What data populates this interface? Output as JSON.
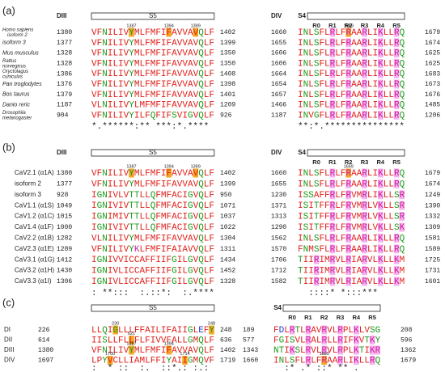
{
  "panels": [
    {
      "label": "(a)",
      "s5_domain": "DIII",
      "s5": "S5",
      "s4_domain": "DIV",
      "s4": "S4",
      "r_labels": [
        "R0",
        "R1",
        "R2",
        "R3",
        "R4",
        "R5"
      ],
      "rows": [
        {
          "name": [
            "Homo sapiens",
            "isoform 2"
          ],
          "s5_start": 1380,
          "s5_seq": "VFNILIVYMLFMFIFAVVAVQLF",
          "s5_end": 1402,
          "s5_marks": [
            1387,
            1394,
            1399
          ],
          "s4_start": 1660,
          "s4_seq": "INLSFLRLFRAARLIKLLRQ",
          "s4_end": 1679,
          "s4_marks": [
            1669
          ]
        },
        {
          "name": [
            "isoform 3"
          ],
          "s5_start": 1377,
          "s5_seq": "VFNILIVYMLFMFIFAVVAVQLF",
          "s5_end": 1399,
          "s5_marks": [],
          "s4_start": 1655,
          "s4_seq": "INLSFLRLFRAARLIKLLRQ",
          "s4_end": 1674,
          "s4_marks": []
        },
        {
          "name": [
            "Mus musculus"
          ],
          "s5_start": 1328,
          "s5_seq": "VFNILIVYMLFMFIFAVVAVQLF",
          "s5_end": 1350,
          "s5_marks": [],
          "s4_start": 1606,
          "s4_seq": "INLSFLRLFRAARLIKLLRQ",
          "s4_end": 1625,
          "s4_marks": []
        },
        {
          "name": [
            "Rattus",
            "norvegicus"
          ],
          "s5_start": 1328,
          "s5_seq": "VFNILIVYMLFMFIFAVVAVQLF",
          "s5_end": 1350,
          "s5_marks": [],
          "s4_start": 1606,
          "s4_seq": "INLSFLRLFRAARLIKLLRQ",
          "s4_end": 1625,
          "s4_marks": []
        },
        {
          "name": [
            "Oryctolagus",
            "cuniculus"
          ],
          "s5_start": 1386,
          "s5_seq": "VFNILIVYMLFMFIFAVVAVQLF",
          "s5_end": 1408,
          "s5_marks": [],
          "s4_start": 1664,
          "s4_seq": "INLSFLRLFRAARLIKLLRQ",
          "s4_end": 1683,
          "s4_marks": []
        },
        {
          "name": [
            "Pan troglodytes"
          ],
          "s5_start": 1376,
          "s5_seq": "VFNILIVYMLFMFIFAVVAVQLF",
          "s5_end": 1398,
          "s5_marks": [],
          "s4_start": 1654,
          "s4_seq": "INLSFLRLFRAARLIKLLRQ",
          "s4_end": 1673,
          "s4_marks": []
        },
        {
          "name": [
            "Bos taurus"
          ],
          "s5_start": 1379,
          "s5_seq": "VFNILIVYMLFMFIFAVVAVQLF",
          "s5_end": 1401,
          "s5_marks": [],
          "s4_start": 1657,
          "s4_seq": "INLSFLRLFRAARLIKLLRQ",
          "s4_end": 1676,
          "s4_marks": []
        },
        {
          "name": [
            "Danio reric"
          ],
          "s5_start": 1187,
          "s5_seq": "VLNILIVYLMFMFIFAVVAVQLF",
          "s5_end": 1209,
          "s5_marks": [],
          "s4_start": 1466,
          "s4_seq": "INLSFLRLFRAARLIKLLRQ",
          "s4_end": 1485,
          "s4_marks": []
        },
        {
          "name": [
            "Drosophila",
            "melanogaster"
          ],
          "s5_start": 904,
          "s5_seq": "VFNILIVYILFQFIFSVIGVQLF",
          "s5_end": 926,
          "s5_marks": [],
          "s4_start": 1187,
          "s4_seq": "INVGFLRLFRAARLIKLLRQ",
          "s4_end": 1206,
          "s4_marks": []
        }
      ],
      "s5_conservation": "*.******:** ***:*.****",
      "s4_conservation": "**:*.***************"
    },
    {
      "label": "(b)",
      "s5_domain": "DIII",
      "s5": "S5",
      "s4_domain": "DIV",
      "s4": "S4",
      "r_labels": [
        "R0",
        "R1",
        "R2",
        "R3",
        "R4",
        "R5"
      ],
      "rows": [
        {
          "name": [
            "CaV2.1 (α1A)"
          ],
          "s5_start": 1380,
          "s5_seq": "VFNILIVYMLFMFIFAVVAVQLF",
          "s5_end": 1402,
          "s5_marks": [
            1387,
            1394,
            1399
          ],
          "s4_start": 1660,
          "s4_seq": "INLSFLRLFRAARLIKLLRQ",
          "s4_end": 1679,
          "s4_marks": [
            1669
          ]
        },
        {
          "name": [
            "isoform 2"
          ],
          "s5_start": 1377,
          "s5_seq": "VFNILIVYMLFMFIFAVVAVQLF",
          "s5_end": 1399,
          "s5_marks": [],
          "s4_start": 1655,
          "s4_seq": "INLSFLRLFRAARLIKLLRQ",
          "s4_end": 1674,
          "s4_marks": []
        },
        {
          "name": [
            "isoform 3"
          ],
          "s5_start": 928,
          "s5_seq": "IGNIVLVTTLLQFMFACIGVQLF",
          "s5_end": 950,
          "s5_marks": [],
          "s4_start": 1230,
          "s4_seq": "ISSAFFRLFRVMRLIKLLSR",
          "s4_end": 1249,
          "s4_marks": []
        },
        {
          "name": [
            "CaV1.1 (α1S)"
          ],
          "s5_start": 1049,
          "s5_seq": "IGNIVIVTTLLQFMFACIGVQLF",
          "s5_end": 1071,
          "s5_marks": [],
          "s4_start": 1371,
          "s4_seq": "ISITFFRLFRVMRLVKLLSR",
          "s4_end": 1390,
          "s4_marks": []
        },
        {
          "name": [
            "CaV1.2 (α1C)"
          ],
          "s5_start": 1015,
          "s5_seq": "IGNIMIVTTLLQFMFACIGVQLF",
          "s5_end": 1037,
          "s5_marks": [],
          "s4_start": 1313,
          "s4_seq": "ISITFFRLFRVMRLVKLLSR",
          "s4_end": 1332,
          "s4_marks": []
        },
        {
          "name": [
            "CaV1.4 (α1F)"
          ],
          "s5_start": 1000,
          "s5_seq": "IGNIVIVTTLLQFMFACIGVQLF",
          "s5_end": 1022,
          "s5_marks": [],
          "s4_start": 1290,
          "s4_seq": "ISITFFRLFRVMRLVKLLSK",
          "s4_end": 1309,
          "s4_marks": []
        },
        {
          "name": [
            "CaV2.2 (α1B)"
          ],
          "s5_start": 1282,
          "s5_seq": "VLNILIVYMLFMFIFAVVAVQLF",
          "s5_end": 1304,
          "s5_marks": [],
          "s4_start": 1562,
          "s4_seq": "INLSFLRLFRAARLIKLLRQ",
          "s4_end": 1581,
          "s4_marks": []
        },
        {
          "name": [
            "CaV2.3 (α1E)"
          ],
          "s5_start": 1289,
          "s5_seq": "VFNILIVYKLFMFIFAIAVVQLF",
          "s5_end": 1311,
          "s5_marks": [],
          "s4_start": 1570,
          "s4_seq": "FNMSFLRLFRAARLIKLLRQ",
          "s4_end": 1589,
          "s4_marks": []
        },
        {
          "name": [
            "CaV3.1 (α1G)"
          ],
          "s5_start": 1412,
          "s5_seq": "IGNIVVICCAFFIIFGILGVQLF",
          "s5_end": 1434,
          "s5_marks": [],
          "s4_start": 1706,
          "s4_seq": "TIIRIMRVLRIARVLKLLKM",
          "s4_end": 1725,
          "s4_marks": []
        },
        {
          "name": [
            "CaV3.2 (α1H)"
          ],
          "s5_start": 1430,
          "s5_seq": "IGNIVLICCAFFIIFGILGVQLF",
          "s5_end": 1452,
          "s5_marks": [],
          "s4_start": 1712,
          "s4_seq": "TIIRIMRVLRIARVLKLLKM",
          "s4_end": 1731,
          "s4_marks": []
        },
        {
          "name": [
            "CaV3.3 (α1I)"
          ],
          "s5_start": 1306,
          "s5_seq": "IGNIVLICCAFFIIFGILGVQLF",
          "s5_end": 1328,
          "s5_marks": [],
          "s4_start": 1582,
          "s4_seq": "TIIRIMRVLRIARVLKLLKM",
          "s4_end": 1601,
          "s4_marks": []
        }
      ],
      "s5_conservation": ": **:::  :.::*:  :.****",
      "s4_conservation": "  ::::* *:::***"
    },
    {
      "label": "(c)",
      "s5": "S5",
      "s4": "S4",
      "r_labels": [
        "R0",
        "R1",
        "R2",
        "R3",
        "R4",
        "R5"
      ],
      "rows": [
        {
          "name": [
            "DI"
          ],
          "s5_start": 226,
          "s5_seq": "LLQIGLLLFFAILIFAIIGLEFY",
          "s5_end": 248,
          "s5_marks": [
            230,
            248
          ],
          "s4_start": 189,
          "s4_seq": "FDLRTLRAVRVLRPLKLVSG",
          "s4_end": 208,
          "s4_marks": []
        },
        {
          "name": [
            "DII"
          ],
          "s5_start": 614,
          "s5_seq": "IISLLFLLFLFIVVFALLGMQLF",
          "s5_end": 636,
          "s5_marks": [
            621
          ],
          "s4_start": 577,
          "s4_seq": "FGISVLRALRLLRIFKVTKY",
          "s4_end": 596,
          "s4_marks": []
        },
        {
          "name": [
            "DIII"
          ],
          "s5_start": 1380,
          "s5_seq": "VFNILIVYMLFMFIFAVVAVQLF",
          "s5_end": 1402,
          "s5_marks": [
            1387,
            1394
          ],
          "s4_start": 1343,
          "s4_seq": "NTIKSLRVLRVLRPLKTIKR",
          "s4_end": 1362,
          "s4_marks": []
        },
        {
          "name": [
            "DIV"
          ],
          "s5_start": 1697,
          "s5_seq": "LPYVCLLIAMLFFIYAIIGMQVF",
          "s5_end": 1719,
          "s5_marks": [
            1700,
            1714
          ],
          "s4_start": 1660,
          "s4_seq": "INLSFLRLFRAARLIKLLRQ",
          "s4_end": 1679,
          "s4_marks": [
            1669
          ]
        }
      ],
      "s5_conservation": ":  * ::  :.  ::*.: :.:",
      "s4_conservation": "  :* .* ::* ** ."
    }
  ]
}
